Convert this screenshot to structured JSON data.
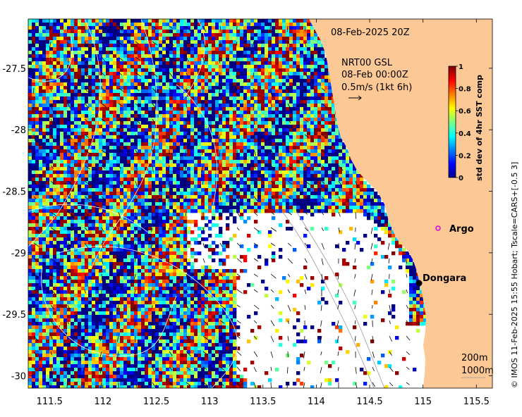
{
  "map": {
    "title_date": "08-Feb-2025 20Z",
    "current_source": "NRT00 GSL",
    "current_time": "08-Feb 00:00Z",
    "current_scale": "0.5m/s (1kt 6h)",
    "lon_ticks": [
      "111.5",
      "112",
      "112.5",
      "113",
      "113.5",
      "114",
      "114.5",
      "115",
      "115.5"
    ],
    "lat_ticks": [
      "-27.5",
      "-28",
      "-28.5",
      "-29",
      "-29.5",
      "-30"
    ],
    "lon_range": [
      111.3,
      115.65
    ],
    "lat_range": [
      -30.1,
      -27.1
    ],
    "land_color": "#fcc896",
    "places": [
      {
        "name": "Argo",
        "lon": 115.0,
        "lat": -28.85,
        "marker": "magenta-circle-icon",
        "color": "#e100e1"
      },
      {
        "name": "Dongara",
        "lon": 114.93,
        "lat": -29.25,
        "marker": "black-dot-icon",
        "color": "#000000"
      }
    ],
    "isobaths": [
      "200m",
      "1000m"
    ],
    "credit": "© IMOS 11-Feb-2025 15:55 Hobart; Tscale=CARS+[-0.5 3]"
  },
  "colorbar": {
    "title": "std dev of 4hr SST comp",
    "ticks": [
      "0",
      "0.2",
      "0.4",
      "0.6",
      "0.8",
      "1"
    ],
    "range": [
      0,
      1
    ],
    "colormap": "jet"
  }
}
